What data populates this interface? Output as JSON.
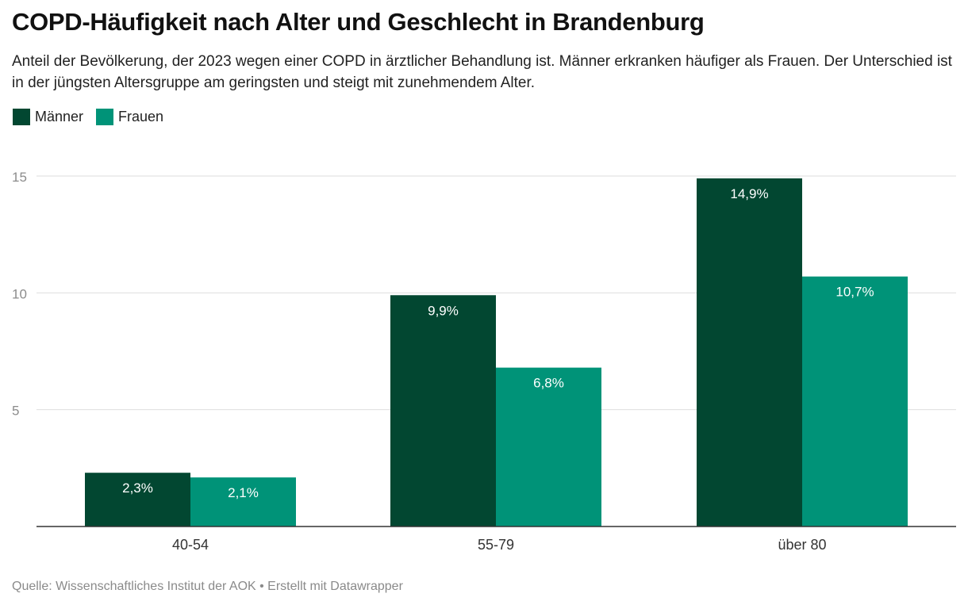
{
  "header": {
    "title": "COPD-Häufigkeit nach Alter und Geschlecht in Brandenburg",
    "subtitle": "Anteil der Bevölkerung, der 2023 wegen einer COPD in ärztlicher Behandlung ist. Männer erkranken häufiger als Frauen. Der Unterschied ist in der jüngsten Altersgruppe am geringsten und steigt mit zunehmendem Alter."
  },
  "legend": {
    "items": [
      {
        "label": "Männer",
        "color": "#024731"
      },
      {
        "label": "Frauen",
        "color": "#009378"
      }
    ]
  },
  "footer": {
    "source": "Quelle: Wissenschaftliches Institut der AOK • Erstellt mit Datawrapper"
  },
  "chart_data": {
    "type": "bar",
    "categories": [
      "40-54",
      "55-79",
      "über 80"
    ],
    "series": [
      {
        "name": "Männer",
        "color": "#024731",
        "values": [
          2.3,
          9.9,
          14.9
        ],
        "labels": [
          "2,3%",
          "9,9%",
          "14,9%"
        ]
      },
      {
        "name": "Frauen",
        "color": "#009378",
        "values": [
          2.1,
          6.8,
          10.7
        ],
        "labels": [
          "2,1%",
          "6,8%",
          "10,7%"
        ]
      }
    ],
    "yticks": [
      5,
      10,
      15
    ],
    "ylim": [
      0,
      15
    ],
    "grid": true,
    "legend_position": "top-left"
  }
}
